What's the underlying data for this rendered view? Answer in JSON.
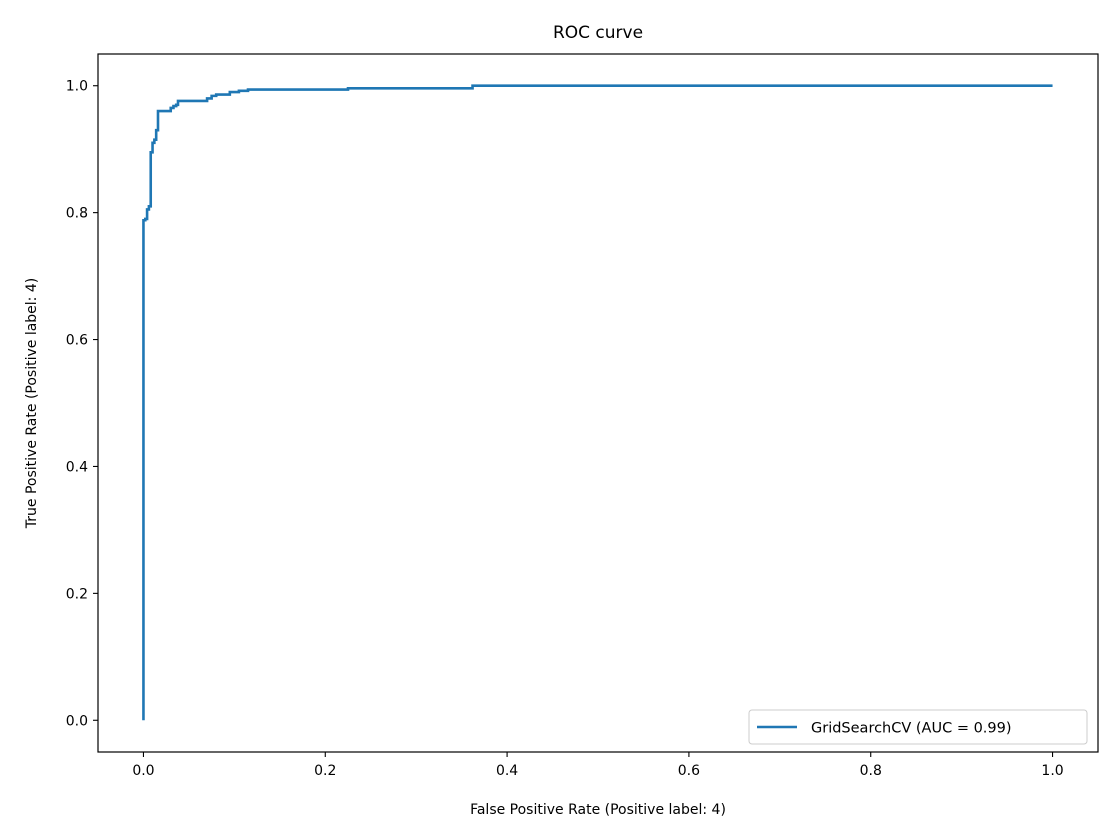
{
  "chart_data": {
    "type": "line",
    "title": "ROC curve",
    "xlabel": "False Positive Rate (Positive label: 4)",
    "ylabel": "True Positive Rate (Positive label: 4)",
    "xlim": [
      -0.05,
      1.05
    ],
    "ylim": [
      -0.05,
      1.05
    ],
    "xticks": [
      0.0,
      0.2,
      0.4,
      0.6,
      0.8,
      1.0
    ],
    "xtick_labels": [
      "0.0",
      "0.2",
      "0.4",
      "0.6",
      "0.8",
      "1.0"
    ],
    "yticks": [
      0.0,
      0.2,
      0.4,
      0.6,
      0.8,
      1.0
    ],
    "ytick_labels": [
      "0.0",
      "0.2",
      "0.4",
      "0.6",
      "0.8",
      "1.0"
    ],
    "grid": false,
    "legend_position": "lower-right",
    "colors": {
      "series": "#1f77b4",
      "axes": "#000000",
      "background": "#ffffff"
    },
    "series": [
      {
        "name": "GridSearchCV (AUC = 0.99)",
        "drawstyle": "steps-post",
        "x": [
          0.0,
          0.0,
          0.002,
          0.004,
          0.004,
          0.006,
          0.008,
          0.008,
          0.01,
          0.012,
          0.014,
          0.016,
          0.02,
          0.03,
          0.033,
          0.036,
          0.038,
          0.07,
          0.075,
          0.08,
          0.095,
          0.105,
          0.115,
          0.225,
          0.362,
          1.0
        ],
        "y": [
          0.0,
          0.788,
          0.79,
          0.8,
          0.805,
          0.81,
          0.815,
          0.895,
          0.91,
          0.915,
          0.93,
          0.96,
          0.96,
          0.965,
          0.968,
          0.97,
          0.976,
          0.98,
          0.984,
          0.986,
          0.99,
          0.992,
          0.994,
          0.996,
          1.0,
          1.0
        ]
      }
    ]
  }
}
